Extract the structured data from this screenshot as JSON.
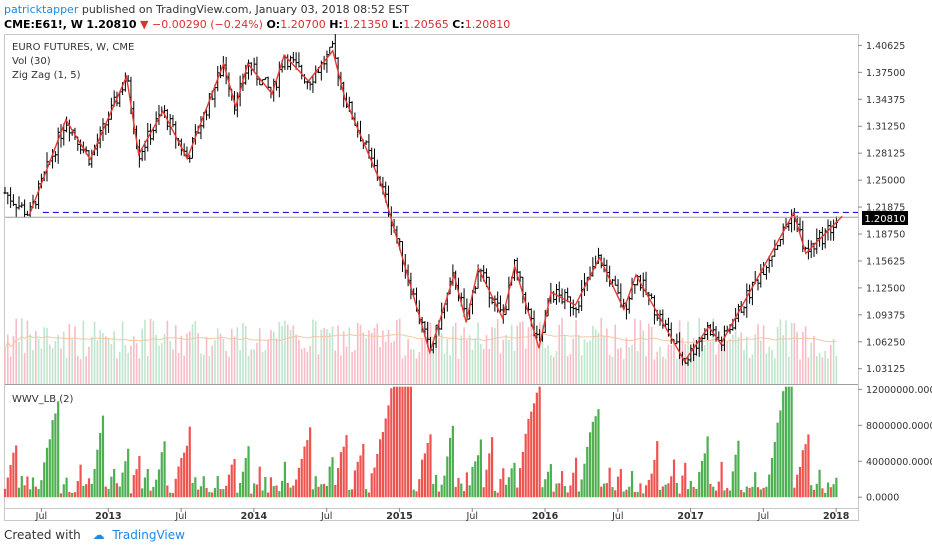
{
  "header": {
    "author": "patricktapper",
    "published": "published on TradingView.com, January 03, 2018 08:52 EST",
    "symbol": "CME:E61!, W",
    "last": "1.20810",
    "change": "−0.00290 (−0.24%)",
    "o_label": "O:",
    "o": "1.20700",
    "h_label": "H:",
    "h": "1.21350",
    "l_label": "L:",
    "l": "1.20565",
    "c_label": "C:",
    "c": "1.20810"
  },
  "legend": {
    "title": "EURO FUTURES, W, CME",
    "vol": "Vol (30)",
    "zigzag": "Zig Zag (1, 5)",
    "sub": "WWV_LB (2)"
  },
  "footer": {
    "created": "Created with",
    "brand": "TradingView"
  },
  "colors": {
    "up": "#4caf50",
    "down": "#ef5350",
    "zigzag": "#e53935",
    "dashed": "#1a1adb",
    "vol_up": "#bfe6cc",
    "vol_down": "#f7bcc5",
    "ma": "#f5c6a5"
  },
  "chart_data": [
    {
      "type": "line",
      "title": "EURO FUTURES, W, CME",
      "ylim": [
        1.0135,
        1.4195
      ],
      "y_ticks": [
        "1.40625",
        "1.37500",
        "1.34375",
        "1.31250",
        "1.28125",
        "1.25000",
        "1.21875",
        "1.18750",
        "1.15625",
        "1.12500",
        "1.09375",
        "1.06250",
        "1.03125"
      ],
      "x_ticks": [
        "Jul",
        "2013",
        "Jul",
        "2014",
        "Jul",
        "2015",
        "Jul",
        "2016",
        "Jul",
        "2017",
        "Jul",
        "2018"
      ],
      "last_value": "1.20810",
      "resistance_level": 1.2125,
      "zigzag": {
        "name": "Zig Zag (1, 5)",
        "points": [
          [
            "2012-06",
            1.21
          ],
          [
            "2012-09",
            1.32
          ],
          [
            "2012-11",
            1.274
          ],
          [
            "2013-02",
            1.37
          ],
          [
            "2013-03",
            1.28
          ],
          [
            "2013-05",
            1.33
          ],
          [
            "2013-07",
            1.275
          ],
          [
            "2013-10",
            1.385
          ],
          [
            "2013-11",
            1.335
          ],
          [
            "2013-12",
            1.385
          ],
          [
            "2014-02",
            1.35
          ],
          [
            "2014-03",
            1.395
          ],
          [
            "2014-05",
            1.365
          ],
          [
            "2014-07",
            1.4
          ],
          [
            "2014-08",
            1.345
          ],
          [
            "2014-11",
            1.245
          ],
          [
            "2015-03",
            1.05
          ],
          [
            "2015-05",
            1.14
          ],
          [
            "2015-06",
            1.085
          ],
          [
            "2015-07",
            1.148
          ],
          [
            "2015-09",
            1.09
          ],
          [
            "2015-10",
            1.15
          ],
          [
            "2015-12",
            1.055
          ],
          [
            "2016-01",
            1.12
          ],
          [
            "2016-03",
            1.105
          ],
          [
            "2016-05",
            1.16
          ],
          [
            "2016-07",
            1.1
          ],
          [
            "2016-08",
            1.14
          ],
          [
            "2016-12",
            1.04
          ],
          [
            "2017-02",
            1.08
          ],
          [
            "2017-03",
            1.06
          ],
          [
            "2017-09",
            1.212
          ],
          [
            "2017-10",
            1.165
          ],
          [
            "2018-01",
            1.208
          ]
        ]
      }
    },
    {
      "type": "bar",
      "title": "WWV_LB (2)",
      "ylim": [
        -1200000,
        12600000
      ],
      "y_ticks": [
        "12000000.0000",
        "8000000.0000",
        "4000000.0000",
        "0.0000"
      ]
    }
  ]
}
